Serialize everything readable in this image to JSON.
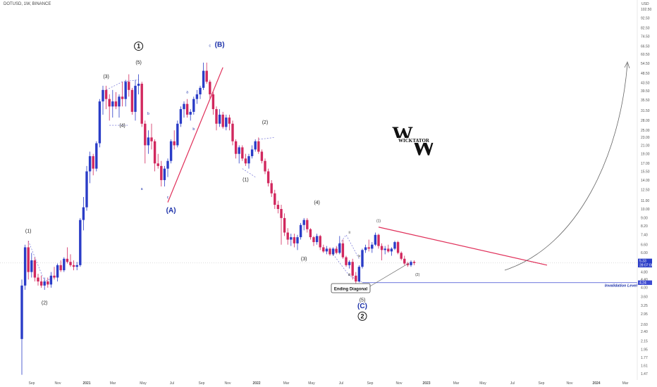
{
  "symbol_line": "DOTUSD, 1W, BINANCE",
  "currency": "USD",
  "logo_text": "WICKTATOR",
  "colors": {
    "up": "#2a3cc7",
    "down": "#d1285e",
    "blue_label": "#1a2fa8",
    "invalid_line": "#3c4ad1",
    "red_line": "#e0305a"
  },
  "chart_data": {
    "type": "candlestick",
    "title": "DOTUSD, 1W, BINANCE",
    "y_scale": "log",
    "y_ticks": [
      "102.50",
      "92.50",
      "82.50",
      "74.50",
      "66.50",
      "60.50",
      "54.50",
      "48.50",
      "43.50",
      "39.50",
      "35.50",
      "31.50",
      "28.00",
      "25.00",
      "23.00",
      "21.00",
      "19.00",
      "17.00",
      "15.50",
      "14.00",
      "12.50",
      "11.00",
      "10.00",
      "9.00",
      "8.20",
      "7.40",
      "6.60",
      "6.00",
      "5.40",
      "4.80",
      "4.40",
      "4.00",
      "3.60",
      "3.25",
      "2.95",
      "2.60",
      "2.40",
      "2.15",
      "1.95",
      "1.77",
      "1.61",
      "1.47"
    ],
    "x_ticks": [
      "Sep",
      "Nov",
      "2021",
      "Mar",
      "May",
      "Jul",
      "Sep",
      "Nov",
      "2022",
      "Mar",
      "May",
      "Jul",
      "Sep",
      "Nov",
      "2023",
      "Mar",
      "May",
      "Jul",
      "Sep",
      "Nov",
      "2024",
      "Mar"
    ],
    "price_tags": [
      "5.33",
      "28:07:08",
      "4.24"
    ],
    "annotations": {
      "ending_diagonal": "Ending Diagonal",
      "invalidation": "Invalidation Level",
      "invalidation_value": 4.24
    },
    "candles": [
      {
        "o": 2.2,
        "h": 4.4,
        "l": 1.45,
        "c": 4.1
      },
      {
        "o": 4.1,
        "h": 6.6,
        "l": 3.9,
        "c": 6.4
      },
      {
        "o": 6.4,
        "h": 6.9,
        "l": 4.4,
        "c": 4.8
      },
      {
        "o": 4.8,
        "h": 6.0,
        "l": 4.5,
        "c": 5.5
      },
      {
        "o": 5.5,
        "h": 5.7,
        "l": 4.3,
        "c": 4.5
      },
      {
        "o": 4.5,
        "h": 4.7,
        "l": 4.1,
        "c": 4.3
      },
      {
        "o": 4.3,
        "h": 4.6,
        "l": 4.0,
        "c": 4.1
      },
      {
        "o": 4.1,
        "h": 4.5,
        "l": 3.9,
        "c": 4.3
      },
      {
        "o": 4.3,
        "h": 4.5,
        "l": 4.0,
        "c": 4.15
      },
      {
        "o": 4.15,
        "h": 4.8,
        "l": 4.0,
        "c": 4.6
      },
      {
        "o": 4.6,
        "h": 5.1,
        "l": 4.4,
        "c": 4.5
      },
      {
        "o": 4.5,
        "h": 5.3,
        "l": 4.3,
        "c": 5.2
      },
      {
        "o": 5.2,
        "h": 5.5,
        "l": 4.8,
        "c": 4.9
      },
      {
        "o": 4.9,
        "h": 5.7,
        "l": 4.8,
        "c": 5.6
      },
      {
        "o": 5.6,
        "h": 6.4,
        "l": 5.3,
        "c": 5.4
      },
      {
        "o": 5.4,
        "h": 5.9,
        "l": 5.1,
        "c": 5.2
      },
      {
        "o": 5.2,
        "h": 5.5,
        "l": 4.9,
        "c": 5.1
      },
      {
        "o": 5.1,
        "h": 5.4,
        "l": 4.9,
        "c": 5.2
      },
      {
        "o": 5.2,
        "h": 9.0,
        "l": 5.1,
        "c": 8.8
      },
      {
        "o": 8.8,
        "h": 11.5,
        "l": 7.8,
        "c": 10.2
      },
      {
        "o": 10.2,
        "h": 16.5,
        "l": 9.8,
        "c": 15.5
      },
      {
        "o": 15.5,
        "h": 19.5,
        "l": 13.5,
        "c": 18.5
      },
      {
        "o": 18.5,
        "h": 19.0,
        "l": 14.8,
        "c": 16.0
      },
      {
        "o": 16.0,
        "h": 22.0,
        "l": 15.5,
        "c": 21.5
      },
      {
        "o": 21.5,
        "h": 36.0,
        "l": 20.5,
        "c": 35.0
      },
      {
        "o": 35.0,
        "h": 42.0,
        "l": 30.0,
        "c": 40.0
      },
      {
        "o": 40.0,
        "h": 42.0,
        "l": 32.0,
        "c": 36.0
      },
      {
        "o": 36.0,
        "h": 38.0,
        "l": 28.0,
        "c": 33.0
      },
      {
        "o": 33.0,
        "h": 40.0,
        "l": 29.0,
        "c": 35.0
      },
      {
        "o": 35.0,
        "h": 39.0,
        "l": 32.0,
        "c": 33.0
      },
      {
        "o": 33.0,
        "h": 38.0,
        "l": 29.0,
        "c": 37.0
      },
      {
        "o": 37.0,
        "h": 44.0,
        "l": 33.0,
        "c": 36.0
      },
      {
        "o": 36.0,
        "h": 45.0,
        "l": 33.0,
        "c": 44.0
      },
      {
        "o": 44.0,
        "h": 48.0,
        "l": 37.0,
        "c": 40.0
      },
      {
        "o": 40.0,
        "h": 41.0,
        "l": 30.0,
        "c": 31.0
      },
      {
        "o": 31.0,
        "h": 45.0,
        "l": 28.0,
        "c": 42.0
      },
      {
        "o": 42.0,
        "h": 48.0,
        "l": 38.0,
        "c": 43.0
      },
      {
        "o": 43.0,
        "h": 44.0,
        "l": 26.0,
        "c": 27.0
      },
      {
        "o": 27.0,
        "h": 28.0,
        "l": 17.0,
        "c": 21.0
      },
      {
        "o": 21.0,
        "h": 25.0,
        "l": 19.0,
        "c": 23.0
      },
      {
        "o": 23.0,
        "h": 27.0,
        "l": 20.0,
        "c": 22.0
      },
      {
        "o": 22.0,
        "h": 22.5,
        "l": 15.5,
        "c": 17.0
      },
      {
        "o": 17.0,
        "h": 19.0,
        "l": 16.0,
        "c": 16.5
      },
      {
        "o": 16.5,
        "h": 17.5,
        "l": 13.0,
        "c": 14.0
      },
      {
        "o": 14.0,
        "h": 16.5,
        "l": 13.0,
        "c": 16.0
      },
      {
        "o": 16.0,
        "h": 18.0,
        "l": 14.5,
        "c": 17.5
      },
      {
        "o": 17.5,
        "h": 22.5,
        "l": 17.0,
        "c": 22.0
      },
      {
        "o": 22.0,
        "h": 25.0,
        "l": 20.0,
        "c": 21.0
      },
      {
        "o": 21.0,
        "h": 28.0,
        "l": 20.5,
        "c": 27.0
      },
      {
        "o": 27.0,
        "h": 33.0,
        "l": 26.0,
        "c": 32.0
      },
      {
        "o": 32.0,
        "h": 35.0,
        "l": 29.0,
        "c": 34.0
      },
      {
        "o": 34.0,
        "h": 36.0,
        "l": 29.0,
        "c": 30.0
      },
      {
        "o": 30.0,
        "h": 32.0,
        "l": 28.0,
        "c": 31.0
      },
      {
        "o": 31.0,
        "h": 37.0,
        "l": 30.0,
        "c": 36.0
      },
      {
        "o": 36.0,
        "h": 40.0,
        "l": 34.0,
        "c": 38.0
      },
      {
        "o": 38.0,
        "h": 42.0,
        "l": 36.0,
        "c": 41.0
      },
      {
        "o": 41.0,
        "h": 55.0,
        "l": 40.0,
        "c": 50.0
      },
      {
        "o": 50.0,
        "h": 55.0,
        "l": 43.0,
        "c": 44.0
      },
      {
        "o": 44.0,
        "h": 45.0,
        "l": 36.0,
        "c": 38.0
      },
      {
        "o": 38.0,
        "h": 39.0,
        "l": 30.0,
        "c": 32.0
      },
      {
        "o": 32.0,
        "h": 33.0,
        "l": 25.0,
        "c": 27.0
      },
      {
        "o": 27.0,
        "h": 32.0,
        "l": 26.0,
        "c": 30.0
      },
      {
        "o": 30.0,
        "h": 31.0,
        "l": 25.5,
        "c": 26.0
      },
      {
        "o": 26.0,
        "h": 30.0,
        "l": 25.0,
        "c": 29.0
      },
      {
        "o": 29.0,
        "h": 30.0,
        "l": 25.0,
        "c": 27.0
      },
      {
        "o": 27.0,
        "h": 28.0,
        "l": 21.0,
        "c": 22.0
      },
      {
        "o": 22.0,
        "h": 22.5,
        "l": 18.0,
        "c": 19.0
      },
      {
        "o": 19.0,
        "h": 21.0,
        "l": 17.0,
        "c": 20.5
      },
      {
        "o": 20.5,
        "h": 21.0,
        "l": 17.5,
        "c": 18.0
      },
      {
        "o": 18.0,
        "h": 19.0,
        "l": 16.5,
        "c": 17.0
      },
      {
        "o": 17.0,
        "h": 19.0,
        "l": 16.0,
        "c": 18.5
      },
      {
        "o": 18.5,
        "h": 21.0,
        "l": 18.0,
        "c": 20.0
      },
      {
        "o": 20.0,
        "h": 22.5,
        "l": 19.5,
        "c": 22.0
      },
      {
        "o": 22.0,
        "h": 23.0,
        "l": 19.0,
        "c": 19.5
      },
      {
        "o": 19.5,
        "h": 20.0,
        "l": 17.0,
        "c": 17.5
      },
      {
        "o": 17.5,
        "h": 18.0,
        "l": 15.0,
        "c": 15.5
      },
      {
        "o": 15.5,
        "h": 16.0,
        "l": 13.0,
        "c": 13.5
      },
      {
        "o": 13.5,
        "h": 14.0,
        "l": 11.5,
        "c": 12.0
      },
      {
        "o": 12.0,
        "h": 12.5,
        "l": 10.0,
        "c": 10.5
      },
      {
        "o": 10.5,
        "h": 11.0,
        "l": 9.5,
        "c": 10.0
      },
      {
        "o": 10.0,
        "h": 10.5,
        "l": 6.6,
        "c": 9.0
      },
      {
        "o": 9.0,
        "h": 9.5,
        "l": 7.3,
        "c": 7.6
      },
      {
        "o": 7.6,
        "h": 8.0,
        "l": 6.6,
        "c": 7.0
      },
      {
        "o": 7.0,
        "h": 7.5,
        "l": 6.5,
        "c": 7.2
      },
      {
        "o": 7.2,
        "h": 7.5,
        "l": 6.4,
        "c": 6.7
      },
      {
        "o": 6.7,
        "h": 7.4,
        "l": 6.2,
        "c": 7.2
      },
      {
        "o": 7.2,
        "h": 8.5,
        "l": 7.0,
        "c": 8.3
      },
      {
        "o": 8.3,
        "h": 9.0,
        "l": 7.8,
        "c": 8.8
      },
      {
        "o": 8.8,
        "h": 9.0,
        "l": 7.6,
        "c": 7.9
      },
      {
        "o": 7.9,
        "h": 8.0,
        "l": 7.0,
        "c": 7.2
      },
      {
        "o": 7.2,
        "h": 7.3,
        "l": 6.5,
        "c": 6.8
      },
      {
        "o": 6.8,
        "h": 7.5,
        "l": 6.6,
        "c": 7.3
      },
      {
        "o": 7.3,
        "h": 7.4,
        "l": 6.2,
        "c": 6.4
      },
      {
        "o": 6.4,
        "h": 6.6,
        "l": 6.0,
        "c": 6.1
      },
      {
        "o": 6.1,
        "h": 6.5,
        "l": 5.9,
        "c": 6.3
      },
      {
        "o": 6.3,
        "h": 6.4,
        "l": 5.8,
        "c": 5.9
      },
      {
        "o": 5.9,
        "h": 6.4,
        "l": 5.8,
        "c": 6.3
      },
      {
        "o": 6.3,
        "h": 6.5,
        "l": 5.9,
        "c": 6.0
      },
      {
        "o": 6.0,
        "h": 7.3,
        "l": 5.9,
        "c": 6.7
      },
      {
        "o": 6.7,
        "h": 7.0,
        "l": 5.6,
        "c": 5.7
      },
      {
        "o": 5.7,
        "h": 5.8,
        "l": 5.1,
        "c": 5.2
      },
      {
        "o": 5.2,
        "h": 5.5,
        "l": 5.0,
        "c": 5.4
      },
      {
        "o": 5.4,
        "h": 5.6,
        "l": 4.4,
        "c": 4.6
      },
      {
        "o": 4.6,
        "h": 4.8,
        "l": 4.2,
        "c": 4.3
      },
      {
        "o": 4.3,
        "h": 5.2,
        "l": 4.25,
        "c": 5.1
      },
      {
        "o": 5.1,
        "h": 6.3,
        "l": 5.0,
        "c": 6.2
      },
      {
        "o": 6.2,
        "h": 6.6,
        "l": 6.0,
        "c": 6.4
      },
      {
        "o": 6.4,
        "h": 7.0,
        "l": 6.1,
        "c": 6.3
      },
      {
        "o": 6.3,
        "h": 6.8,
        "l": 6.0,
        "c": 6.6
      },
      {
        "o": 6.6,
        "h": 7.6,
        "l": 6.5,
        "c": 7.4
      },
      {
        "o": 7.4,
        "h": 7.5,
        "l": 6.3,
        "c": 6.5
      },
      {
        "o": 6.5,
        "h": 6.7,
        "l": 5.5,
        "c": 6.2
      },
      {
        "o": 6.2,
        "h": 6.5,
        "l": 5.9,
        "c": 6.3
      },
      {
        "o": 6.3,
        "h": 6.6,
        "l": 6.0,
        "c": 6.1
      },
      {
        "o": 6.1,
        "h": 6.4,
        "l": 5.8,
        "c": 6.3
      },
      {
        "o": 6.3,
        "h": 6.9,
        "l": 6.2,
        "c": 6.8
      },
      {
        "o": 6.8,
        "h": 6.9,
        "l": 5.9,
        "c": 6.0
      },
      {
        "o": 6.0,
        "h": 6.1,
        "l": 5.5,
        "c": 5.6
      },
      {
        "o": 5.6,
        "h": 5.8,
        "l": 5.2,
        "c": 5.3
      },
      {
        "o": 5.3,
        "h": 5.4,
        "l": 5.1,
        "c": 5.2
      },
      {
        "o": 5.2,
        "h": 5.5,
        "l": 5.1,
        "c": 5.4
      },
      {
        "o": 5.4,
        "h": 5.5,
        "l": 5.2,
        "c": 5.33
      }
    ],
    "wave_labels": [
      {
        "text": "(1)",
        "ci": 2,
        "price": 7.6,
        "style": "black"
      },
      {
        "text": "(2)",
        "ci": 7,
        "price": 3.3,
        "style": "black"
      },
      {
        "text": "(3)",
        "ci": 26,
        "price": 46,
        "style": "black"
      },
      {
        "text": "(4)",
        "ci": 31,
        "price": 26,
        "style": "black"
      },
      {
        "text": "(5)",
        "ci": 36,
        "price": 54,
        "style": "black"
      },
      {
        "text": "1",
        "ci": 36,
        "price": 65,
        "style": "circle"
      },
      {
        "text": "(A)",
        "ci": 46,
        "price": 9.6,
        "style": "blue"
      },
      {
        "text": "(B)",
        "ci": 61,
        "price": 66,
        "style": "blue"
      },
      {
        "text": "(1)",
        "ci": 69,
        "price": 13.8,
        "style": "black"
      },
      {
        "text": "(2)",
        "ci": 75,
        "price": 27,
        "style": "black"
      },
      {
        "text": "(3)",
        "ci": 87,
        "price": 5.5,
        "style": "black"
      },
      {
        "text": "(4)",
        "ci": 91,
        "price": 10.6,
        "style": "black"
      },
      {
        "text": "(5)",
        "ci": 105,
        "price": 3.4,
        "style": "black"
      },
      {
        "text": "(C)",
        "ci": 105,
        "price": 3.15,
        "style": "blue"
      },
      {
        "text": "2",
        "ci": 105,
        "price": 2.8,
        "style": "circle"
      },
      {
        "text": "(1)",
        "ci": 110,
        "price": 8.6,
        "style": "small"
      },
      {
        "text": "(2)",
        "ci": 122,
        "price": 4.6,
        "style": "small"
      }
    ],
    "minor_labels": [
      {
        "text": "a",
        "ci": 37,
        "price": 12.5
      },
      {
        "text": "b",
        "ci": 39,
        "price": 30.0
      },
      {
        "text": "a",
        "ci": 51,
        "price": 38.5
      },
      {
        "text": "b",
        "ci": 53,
        "price": 25.0
      },
      {
        "text": "c",
        "ci": 58,
        "price": 66.0
      },
      {
        "text": "c",
        "ci": 45,
        "price": 11.3
      },
      {
        "text": "i",
        "ci": 96,
        "price": 5.8
      },
      {
        "text": "ii",
        "ci": 101,
        "price": 7.5
      },
      {
        "text": "iii",
        "ci": 101,
        "price": 4.6
      },
      {
        "text": "iv",
        "ci": 104,
        "price": 5.7
      },
      {
        "text": "v",
        "ci": 105,
        "price": 3.8
      }
    ]
  }
}
